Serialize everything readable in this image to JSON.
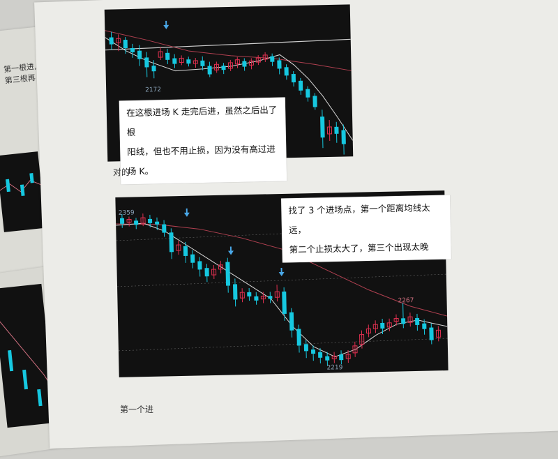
{
  "page": {
    "left_sheet": {
      "text_lines": [
        "第一根进,",
        "第三根再"
      ]
    },
    "top_chart": {
      "low_label": "2172",
      "note_lines": [
        "在这根进场 K 走完后进，虽然之后出了根",
        "阳线，但也不用止损，因为没有高过进场 K。"
      ],
      "caption": "对的"
    },
    "bottom_chart": {
      "high_label": "2359",
      "peak_label": "2267",
      "low_label": "2219",
      "note_lines": [
        "找了 3 个进场点，第一个距离均线太远，",
        "第二个止损太大了，第三个出现太晚"
      ],
      "caption": "第一个进"
    },
    "colors": {
      "up_candle": "#e03050",
      "down_candle": "#16c8e0",
      "ma_line": "#d8d8d8",
      "arrow": "#4aa8e8"
    }
  }
}
